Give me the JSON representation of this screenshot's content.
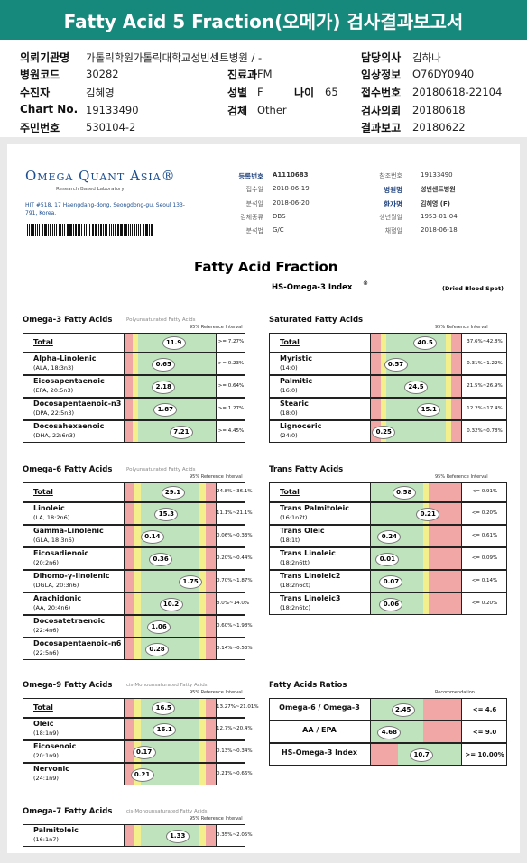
{
  "header": {
    "title": "Fatty Acid 5 Fraction(오메가) 검사결과보고서"
  },
  "info": [
    {
      "label": "의뢰기관명",
      "value": "가톨릭학원가톨릭대학교성빈센트병원 / -"
    },
    {
      "label": "담당의사",
      "value": "김하나"
    },
    {
      "label": "병원코드",
      "value": "30282"
    },
    {
      "label": "진료과",
      "value": "FM"
    },
    {
      "label": "임상정보",
      "value": "O76DY0940"
    },
    {
      "label": "수진자",
      "value": "김혜영"
    },
    {
      "label": "성별",
      "value": "F"
    },
    {
      "label": "나이",
      "value": 65
    },
    {
      "label": "접수번호",
      "value": "20180618-22104"
    },
    {
      "label": "Chart No.",
      "value": "19133490"
    },
    {
      "label": "검체",
      "value": "Other"
    },
    {
      "label": "검사의뢰",
      "value": "20180618"
    },
    {
      "label": "주민번호",
      "value": "530104-2"
    },
    {
      "label": "결과보고",
      "value": "20180622"
    }
  ],
  "lab": {
    "name": "Omega Quant Asia®",
    "tagline": "Research Based Laboratory",
    "address": "HIT #518, 17 Haengdang-dong, Seongdong-gu, Seoul 133-791, Korea."
  },
  "report_fields": {
    "middle": [
      {
        "label": "등록번호",
        "value": "A1110683"
      },
      {
        "label": "접수일",
        "value": "2018-06-19"
      },
      {
        "label": "분석일",
        "value": "2018-06-20"
      },
      {
        "label": "검체종류",
        "value": "DBS"
      },
      {
        "label": "분석법",
        "value": "G/C"
      }
    ],
    "right": [
      {
        "label": "참조번호",
        "value": "19133490"
      },
      {
        "label": "병원명",
        "value": "성빈센트병원"
      },
      {
        "label": "환자명",
        "value": "김혜영 (F)"
      },
      {
        "label": "생년월일",
        "value": "1953-01-04"
      },
      {
        "label": "채혈일",
        "value": "2018-06-18"
      }
    ]
  },
  "report": {
    "title": "Fatty Acid Fraction",
    "index_title": "HS-Omega-3 Index",
    "index_mark": "®",
    "sample": "(Dried Blood Spot)"
  },
  "panels": [
    {
      "title": "Omega-3 Fatty Acids",
      "subtitle": "Polyunsaturated Fatty Acids",
      "ref_header": "95% Reference Interval",
      "rows": [
        {
          "name": "Total",
          "value": 11.9,
          "ref": ">= 7.27%"
        },
        {
          "name": "Alpha-Linolenic",
          "sub": "(ALA, 18:3n3)",
          "value": 0.65,
          "ref": ">= 0.23%"
        },
        {
          "name": "Eicosapentaenoic",
          "sub": "(EPA, 20:5n3)",
          "value": 2.18,
          "ref": ">= 0.64%"
        },
        {
          "name": "Docosapentaenoic-n3",
          "sub": "(DPA, 22:5n3)",
          "value": 1.87,
          "ref": ">= 1.27%"
        },
        {
          "name": "Docosahexaenoic",
          "sub": "(DHA, 22:6n3)",
          "value": 7.21,
          "ref": ">= 4.45%"
        }
      ]
    },
    {
      "title": "Saturated Fatty Acids",
      "ref_header": "95% Reference Interval",
      "rows": [
        {
          "name": "Total",
          "value": 40.5,
          "ref": "37.6%~42.8%"
        },
        {
          "name": "Myristic",
          "sub": "(14:0)",
          "value": 0.57,
          "ref": "0.31%~1.22%"
        },
        {
          "name": "Palmitic",
          "sub": "(16:0)",
          "value": 24.5,
          "ref": "21.5%~26.9%"
        },
        {
          "name": "Stearic",
          "sub": "(18:0)",
          "value": 15.1,
          "ref": "12.2%~17.4%"
        },
        {
          "name": "Lignoceric",
          "sub": "(24:0)",
          "value": 0.25,
          "ref": "0.32%~0.78%"
        }
      ]
    },
    {
      "title": "Omega-6 Fatty Acids",
      "subtitle": "Polyunsaturated Fatty Acids",
      "ref_header": "95% Reference Interval",
      "rows": [
        {
          "name": "Total",
          "value": 29.1,
          "ref": "24.8%~36.1%"
        },
        {
          "name": "Linoleic",
          "sub": "(LA, 18:2n6)",
          "value": 15.3,
          "ref": "11.1%~21.1%"
        },
        {
          "name": "Gamma-Linolenic",
          "sub": "(GLA, 18:3n6)",
          "value": 0.14,
          "ref": "0.06%~0.33%"
        },
        {
          "name": "Eicosadienoic",
          "sub": "(20:2n6)",
          "value": 0.36,
          "ref": "0.20%~0.44%"
        },
        {
          "name": "Dihomo-γ-linolenic",
          "sub": "(DGLA, 20:3n6)",
          "value": 1.75,
          "ref": "0.70%~1.87%"
        },
        {
          "name": "Arachidonic",
          "sub": "(AA, 20:4n6)",
          "value": 10.2,
          "ref": "8.0%~14.0%"
        },
        {
          "name": "Docosatetraenoic",
          "sub": "(22:4n6)",
          "value": 1.06,
          "ref": "0.60%~1.98%"
        },
        {
          "name": "Docosapentaenoic-n6",
          "sub": "(22:5n6)",
          "value": 0.28,
          "ref": "0.14%~0.53%"
        }
      ]
    },
    {
      "title": "Trans Fatty Acids",
      "ref_header": "95% Reference Interval",
      "rows": [
        {
          "name": "Total",
          "value": 0.58,
          "ref": "<= 0.91%"
        },
        {
          "name": "Trans Palmitoleic",
          "sub": "(16:1n7t)",
          "value": 0.21,
          "ref": "<= 0.20%"
        },
        {
          "name": "Trans Oleic",
          "sub": "(18:1t)",
          "value": 0.24,
          "ref": "<= 0.61%"
        },
        {
          "name": "Trans Linoleic",
          "sub": "(18:2n6tt)",
          "value": 0.01,
          "ref": "<= 0.09%"
        },
        {
          "name": "Trans Linoleic2",
          "sub": "(18:2n6ct)",
          "value": 0.07,
          "ref": "<= 0.14%"
        },
        {
          "name": "Trans Linoleic3",
          "sub": "(18:2n6tc)",
          "value": 0.06,
          "ref": "<= 0.20%"
        }
      ]
    },
    {
      "title": "Omega-9 Fatty Acids",
      "subtitle": "cis-Monounsaturated Fatty Acids",
      "ref_header": "95% Reference Interval",
      "rows": [
        {
          "name": "Total",
          "value": 16.5,
          "ref": "13.27%~21.01%"
        },
        {
          "name": "Oleic",
          "sub": "(18:1n9)",
          "value": 16.1,
          "ref": "12.7%~20.4%"
        },
        {
          "name": "Eicosenoic",
          "sub": "(20:1n9)",
          "value": 0.17,
          "ref": "0.13%~0.34%"
        },
        {
          "name": "Nervonic",
          "sub": "(24:1n9)",
          "value": 0.21,
          "ref": "0.21%~0.66%"
        }
      ]
    },
    {
      "title": "Fatty Acids Ratios",
      "ref_header": "Recommendation",
      "rows": [
        {
          "name": "Omega-6 / Omega-3",
          "value": 2.45,
          "ref": "<= 4.6"
        },
        {
          "name": "AA / EPA",
          "value": 4.68,
          "ref": "<= 9.0"
        },
        {
          "name": "HS-Omega-3 Index",
          "value": 10.7,
          "ref": ">= 10.00%"
        }
      ]
    },
    {
      "title": "Omega-7 Fatty Acids",
      "subtitle": "cis-Monounsaturated Fatty Acids",
      "ref_header": "95% Reference Interval",
      "rows": [
        {
          "name": "Palmitoleic",
          "sub": "(16:1n7)",
          "value": 1.33,
          "ref": "0.35%~2.05%"
        }
      ]
    }
  ]
}
